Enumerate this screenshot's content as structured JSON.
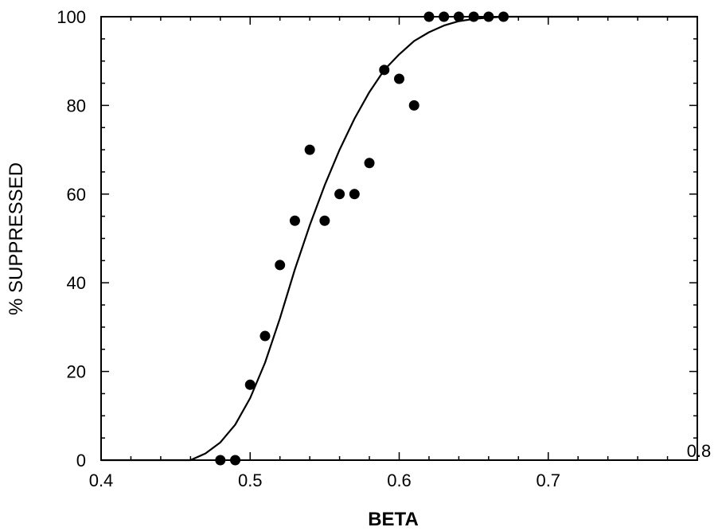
{
  "chart_data": {
    "type": "scatter",
    "title": "",
    "xlabel": "BETA",
    "ylabel": "% SUPPRESSED",
    "xlim": [
      0.4,
      0.8
    ],
    "ylim": [
      0,
      100
    ],
    "grid": false,
    "x_ticks": [
      "0.4",
      "0.5",
      "0.6",
      "0.7",
      "0.8"
    ],
    "y_ticks": [
      "0",
      "20",
      "40",
      "60",
      "80",
      "100"
    ],
    "series": [
      {
        "kind": "points",
        "x": [
          0.48,
          0.49,
          0.5,
          0.51,
          0.52,
          0.53,
          0.54,
          0.55,
          0.56,
          0.57,
          0.58,
          0.59,
          0.6,
          0.61,
          0.62,
          0.63,
          0.64,
          0.65,
          0.66,
          0.67
        ],
        "y": [
          0,
          0,
          17,
          28,
          44,
          54,
          70,
          54,
          60,
          60,
          67,
          88,
          86,
          80,
          100,
          100,
          100,
          100,
          100,
          100
        ]
      },
      {
        "kind": "fitted-curve",
        "x": [
          0.46,
          0.47,
          0.48,
          0.49,
          0.5,
          0.51,
          0.52,
          0.53,
          0.54,
          0.55,
          0.56,
          0.57,
          0.58,
          0.59,
          0.6,
          0.61,
          0.62,
          0.63,
          0.64,
          0.65,
          0.66,
          0.67,
          0.68,
          0.69,
          0.7,
          0.72,
          0.75,
          0.8
        ],
        "y": [
          0,
          1.5,
          4,
          8,
          14,
          22,
          32,
          43,
          53,
          62,
          70,
          77,
          83,
          88,
          91.5,
          94.5,
          96.5,
          98,
          99,
          99.5,
          99.8,
          100,
          100,
          100,
          100,
          100,
          100,
          100
        ]
      }
    ]
  }
}
